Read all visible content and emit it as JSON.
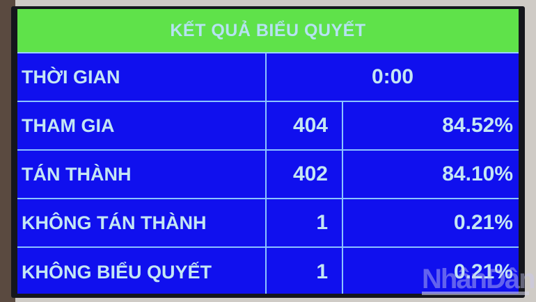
{
  "header": {
    "title": "KẾT QUẢ BIỂU QUYẾT"
  },
  "time": {
    "label": "THỜI GIAN",
    "value": "0:00"
  },
  "rows": [
    {
      "label": "THAM GIA",
      "count": "404",
      "percent": "84.52%"
    },
    {
      "label": "TÁN THÀNH",
      "count": "402",
      "percent": "84.10%"
    },
    {
      "label": "KHÔNG TÁN THÀNH",
      "count": "1",
      "percent": "0.21%"
    },
    {
      "label": "KHÔNG BIỂU QUYẾT",
      "count": "1",
      "percent": "0.21%"
    }
  ],
  "watermark": "NhânDân",
  "colors": {
    "header_bg": "#5fe24a",
    "table_bg": "#1010ee",
    "text": "#c4e6f4"
  }
}
